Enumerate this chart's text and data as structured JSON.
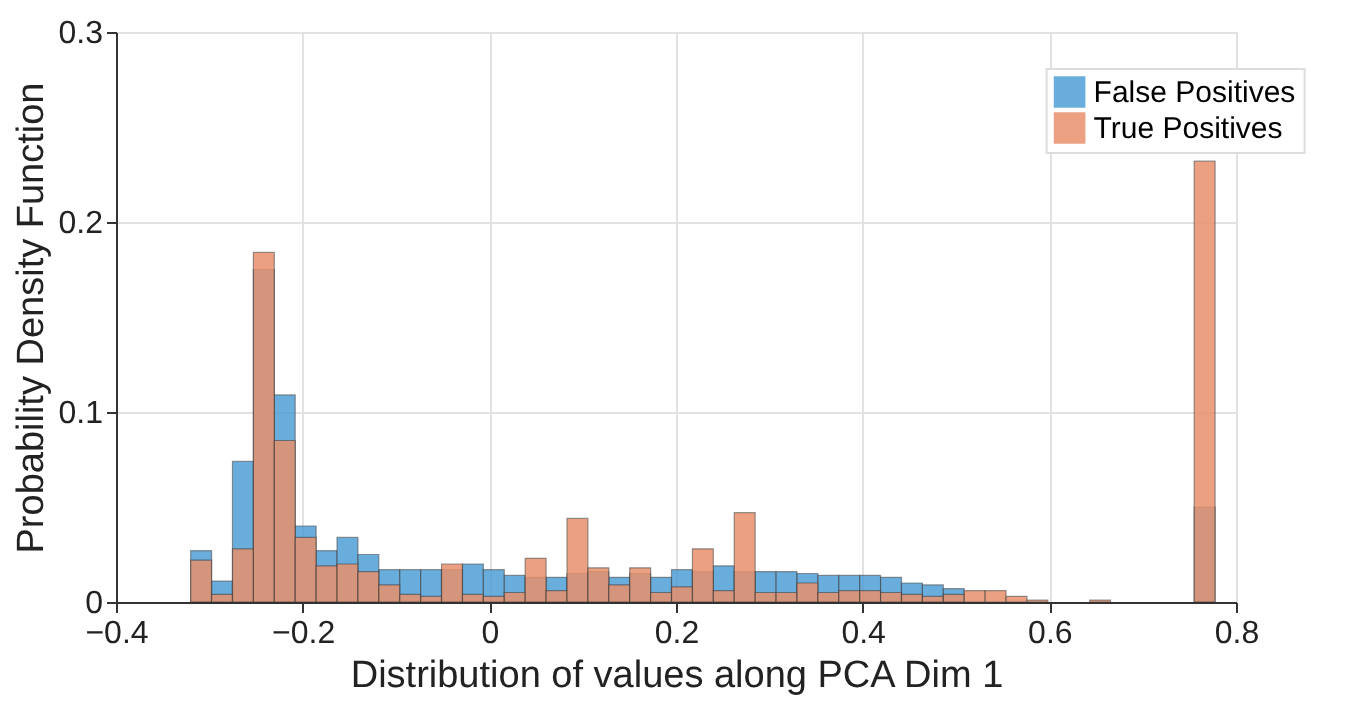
{
  "chart_data": {
    "type": "histogram",
    "xlabel": "Distribution of values along PCA Dim 1",
    "ylabel": "Probability Density Function",
    "bins": [
      -0.32,
      -0.2976,
      -0.2752,
      -0.2528,
      -0.2304,
      -0.208,
      -0.1856,
      -0.1632,
      -0.1408,
      -0.1184,
      -0.096,
      -0.0736,
      -0.0512,
      -0.0288,
      -0.0064,
      0.016,
      0.0384,
      0.0608,
      0.0832,
      0.1056,
      0.128,
      0.1504,
      0.1728,
      0.1952,
      0.2176,
      0.24,
      0.2624,
      0.2848,
      0.3072,
      0.3296,
      0.352,
      0.3744,
      0.3968,
      0.4192,
      0.4416,
      0.464,
      0.4864,
      0.5088,
      0.5312,
      0.5536,
      0.576,
      0.5984,
      0.6208,
      0.6432,
      0.6656,
      0.688,
      0.7104,
      0.7328,
      0.7552,
      0.7776
    ],
    "series": [
      {
        "name": "False Positives",
        "color": "#4f9fd6",
        "values": [
          0.027,
          0.011,
          0.074,
          0.175,
          0.109,
          0.04,
          0.027,
          0.034,
          0.025,
          0.017,
          0.017,
          0.017,
          0.017,
          0.02,
          0.017,
          0.014,
          0.013,
          0.013,
          0.015,
          0.016,
          0.013,
          0.015,
          0.013,
          0.017,
          0.016,
          0.019,
          0.016,
          0.016,
          0.016,
          0.015,
          0.014,
          0.014,
          0.014,
          0.013,
          0.01,
          0.009,
          0.007,
          null,
          null,
          null,
          null,
          0,
          0,
          0,
          0,
          0,
          0,
          0,
          0.05
        ]
      },
      {
        "name": "True Positives",
        "color": "#e8916c",
        "values": [
          0.022,
          0.004,
          0.028,
          0.184,
          0.085,
          0.034,
          0.019,
          0.02,
          0.016,
          0.009,
          0.004,
          0.003,
          0.02,
          0.004,
          0.003,
          0.005,
          0.023,
          0.006,
          0.044,
          0.018,
          0.009,
          0.018,
          0.005,
          0.008,
          0.028,
          0.006,
          0.047,
          0.005,
          0.005,
          0.01,
          0.005,
          0.006,
          0.006,
          0.005,
          0.004,
          0.003,
          0.004,
          0.006,
          0.006,
          0.003,
          0.001,
          0,
          0,
          0.001,
          0,
          0,
          0,
          0,
          0.232
        ]
      }
    ],
    "xlim": [
      -0.4,
      0.8
    ],
    "xticks": [
      -0.4,
      -0.2,
      0,
      0.2,
      0.4,
      0.6,
      0.8
    ],
    "ylim": [
      0,
      0.3
    ],
    "yticks": [
      0,
      0.1,
      0.2,
      0.3
    ],
    "grid": true,
    "legend": "top right"
  }
}
